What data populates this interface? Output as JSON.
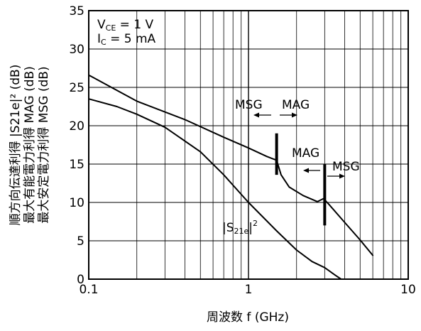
{
  "chart_data": {
    "type": "line",
    "xlabel": "周波数  f (GHz)",
    "ylabel_lines": [
      "順方向伝達利得  |S21e|² (dB)",
      "最大有能電力利得  MAG (dB)",
      "最大安定電力利得  MSG (dB)"
    ],
    "x_scale": "log",
    "xlim": [
      0.1,
      10
    ],
    "ylim": [
      0,
      35
    ],
    "grid": true,
    "x_ticks": [
      {
        "value": 0.1,
        "label": "0.1"
      },
      {
        "value": 1,
        "label": "1"
      },
      {
        "value": 10,
        "label": "10"
      }
    ],
    "y_ticks": [
      {
        "value": 0,
        "label": "0"
      },
      {
        "value": 5,
        "label": "5"
      },
      {
        "value": 10,
        "label": "10"
      },
      {
        "value": 15,
        "label": "15"
      },
      {
        "value": 20,
        "label": "20"
      },
      {
        "value": 25,
        "label": "25"
      },
      {
        "value": 30,
        "label": "30"
      },
      {
        "value": 35,
        "label": "35"
      }
    ],
    "conditions": {
      "vce": {
        "main": "V",
        "sub": "CE",
        "rest": " = 1 V"
      },
      "ic": {
        "main": "I",
        "sub": "C",
        "rest": " = 5 mA"
      }
    },
    "series": [
      {
        "id": "msg_mag",
        "x": [
          0.1,
          0.2,
          0.4,
          0.7,
          1.0,
          1.3,
          1.5,
          1.6,
          1.8,
          2.2,
          2.7,
          2.95,
          3.2,
          4.0,
          5.0,
          6.0
        ],
        "y": [
          26.6,
          23.2,
          20.8,
          18.5,
          17.1,
          16.0,
          15.5,
          13.6,
          12.0,
          10.9,
          10.1,
          10.5,
          9.7,
          7.4,
          5.1,
          3.1
        ]
      },
      {
        "id": "s21",
        "x": [
          0.1,
          0.15,
          0.2,
          0.3,
          0.5,
          0.7,
          1.0,
          1.5,
          2.0,
          2.5,
          3.0,
          3.5,
          3.8
        ],
        "y": [
          23.5,
          22.5,
          21.5,
          19.8,
          16.6,
          13.6,
          10.0,
          6.3,
          3.8,
          2.3,
          1.5,
          0.5,
          0.0
        ]
      }
    ],
    "annotations": {
      "s21_label": {
        "main": "|S",
        "sub": "21e",
        "close": "|",
        "sup": "2"
      },
      "msg_left": "MSG",
      "mag_right": "MAG",
      "mag_left": "MAG",
      "msg_right": "MSG",
      "marker_1_x": 1.5,
      "marker_1_range": [
        13.6,
        19.0
      ],
      "marker_2_x": 3.0,
      "marker_2_range": [
        7.0,
        15.0
      ]
    }
  }
}
